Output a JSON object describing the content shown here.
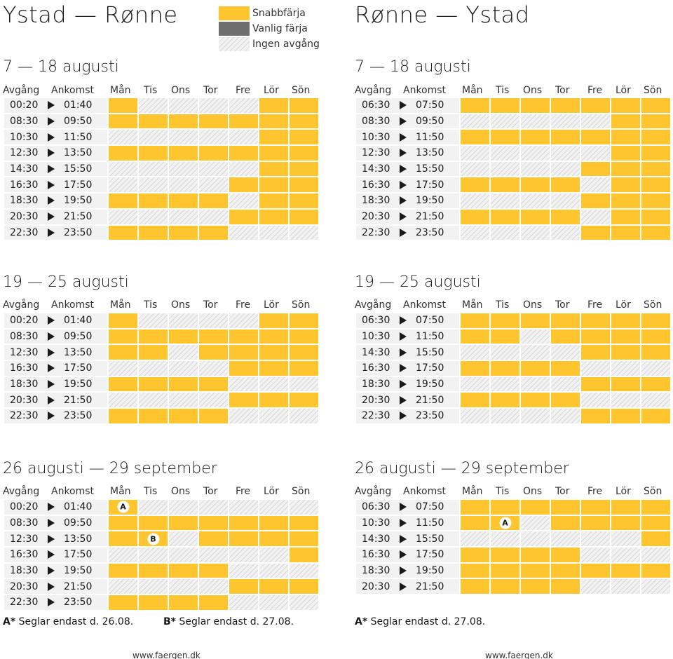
{
  "legend": {
    "fast_label": "Snabbfärja",
    "regular_label": "Vanlig färja",
    "none_label": "Ingen avgång",
    "colors": {
      "fast": "#ffc52e",
      "regular": "#6e6e6e",
      "none": "#f2f2f2"
    }
  },
  "columns": {
    "departure": "Avgång",
    "arrival": "Ankomst",
    "days": [
      "Mån",
      "Tis",
      "Ons",
      "Tor",
      "Fre",
      "Lör",
      "Sön"
    ]
  },
  "routes": [
    {
      "title": "Ystad — Rønne",
      "footer": "www.faergen.dk",
      "periods": [
        {
          "title": "7 — 18 augusti",
          "rows": [
            {
              "dep": "00:20",
              "arr": "01:40",
              "days": [
                "fast",
                "none",
                "none",
                "none",
                "none",
                "fast",
                "fast"
              ]
            },
            {
              "dep": "08:30",
              "arr": "09:50",
              "days": [
                "fast",
                "fast",
                "fast",
                "fast",
                "fast",
                "fast",
                "fast"
              ]
            },
            {
              "dep": "10:30",
              "arr": "11:50",
              "days": [
                "none",
                "none",
                "none",
                "none",
                "none",
                "fast",
                "fast"
              ]
            },
            {
              "dep": "12:30",
              "arr": "13:50",
              "days": [
                "fast",
                "fast",
                "fast",
                "fast",
                "fast",
                "fast",
                "fast"
              ]
            },
            {
              "dep": "14:30",
              "arr": "15:50",
              "days": [
                "none",
                "none",
                "none",
                "none",
                "none",
                "fast",
                "fast"
              ]
            },
            {
              "dep": "16:30",
              "arr": "17:50",
              "days": [
                "none",
                "none",
                "none",
                "none",
                "fast",
                "fast",
                "fast"
              ]
            },
            {
              "dep": "18:30",
              "arr": "19:50",
              "days": [
                "fast",
                "fast",
                "fast",
                "fast",
                "none",
                "fast",
                "fast"
              ]
            },
            {
              "dep": "20:30",
              "arr": "21:50",
              "days": [
                "none",
                "none",
                "none",
                "none",
                "fast",
                "fast",
                "fast"
              ]
            },
            {
              "dep": "22:30",
              "arr": "23:50",
              "days": [
                "fast",
                "fast",
                "fast",
                "fast",
                "none",
                "none",
                "none"
              ]
            }
          ]
        },
        {
          "title": "19 — 25 augusti",
          "rows": [
            {
              "dep": "00:20",
              "arr": "01:40",
              "days": [
                "fast",
                "none",
                "none",
                "none",
                "none",
                "fast",
                "fast"
              ]
            },
            {
              "dep": "08:30",
              "arr": "09:50",
              "days": [
                "fast",
                "fast",
                "fast",
                "fast",
                "fast",
                "fast",
                "fast"
              ]
            },
            {
              "dep": "12:30",
              "arr": "13:50",
              "days": [
                "fast",
                "fast",
                "none",
                "fast",
                "fast",
                "fast",
                "fast"
              ]
            },
            {
              "dep": "16:30",
              "arr": "17:50",
              "days": [
                "none",
                "none",
                "none",
                "none",
                "fast",
                "fast",
                "fast"
              ]
            },
            {
              "dep": "18:30",
              "arr": "19:50",
              "days": [
                "fast",
                "fast",
                "fast",
                "fast",
                "none",
                "none",
                "none"
              ]
            },
            {
              "dep": "20:30",
              "arr": "21:50",
              "days": [
                "none",
                "none",
                "none",
                "none",
                "fast",
                "fast",
                "fast"
              ]
            },
            {
              "dep": "22:30",
              "arr": "23:50",
              "days": [
                "fast",
                "fast",
                "fast",
                "fast",
                "none",
                "none",
                "none"
              ]
            }
          ]
        },
        {
          "title": "26 augusti — 29 september",
          "rows": [
            {
              "dep": "00:20",
              "arr": "01:40",
              "days": [
                "fast",
                "none",
                "none",
                "none",
                "none",
                "none",
                "none"
              ],
              "marker": {
                "day": 0,
                "text": "A"
              }
            },
            {
              "dep": "08:30",
              "arr": "09:50",
              "days": [
                "fast",
                "fast",
                "fast",
                "fast",
                "fast",
                "fast",
                "fast"
              ]
            },
            {
              "dep": "12:30",
              "arr": "13:50",
              "days": [
                "fast",
                "fast",
                "none",
                "fast",
                "fast",
                "fast",
                "fast"
              ],
              "marker": {
                "day": 1,
                "text": "B"
              }
            },
            {
              "dep": "16:30",
              "arr": "17:50",
              "days": [
                "none",
                "none",
                "none",
                "none",
                "none",
                "none",
                "fast"
              ]
            },
            {
              "dep": "18:30",
              "arr": "19:50",
              "days": [
                "fast",
                "fast",
                "fast",
                "fast",
                "none",
                "none",
                "none"
              ]
            },
            {
              "dep": "20:30",
              "arr": "21:50",
              "days": [
                "none",
                "none",
                "none",
                "none",
                "fast",
                "fast",
                "fast"
              ]
            },
            {
              "dep": "22:30",
              "arr": "23:50",
              "days": [
                "fast",
                "fast",
                "fast",
                "fast",
                "none",
                "none",
                "none"
              ]
            }
          ]
        }
      ],
      "footnotes": [
        {
          "key": "A*",
          "text": " Seglar endast d. 26.08."
        },
        {
          "key": "B*",
          "text": " Seglar endast d. 27.08."
        }
      ]
    },
    {
      "title": "Rønne — Ystad",
      "footer": "www.faergen.dk",
      "periods": [
        {
          "title": "7 — 18 augusti",
          "rows": [
            {
              "dep": "06:30",
              "arr": "07:50",
              "days": [
                "fast",
                "fast",
                "fast",
                "fast",
                "fast",
                "fast",
                "fast"
              ]
            },
            {
              "dep": "08:30",
              "arr": "09:50",
              "days": [
                "none",
                "none",
                "none",
                "none",
                "none",
                "fast",
                "fast"
              ]
            },
            {
              "dep": "10:30",
              "arr": "11:50",
              "days": [
                "fast",
                "fast",
                "fast",
                "fast",
                "fast",
                "fast",
                "fast"
              ]
            },
            {
              "dep": "12:30",
              "arr": "13:50",
              "days": [
                "none",
                "none",
                "none",
                "none",
                "none",
                "fast",
                "fast"
              ]
            },
            {
              "dep": "14:30",
              "arr": "15:50",
              "days": [
                "none",
                "none",
                "none",
                "none",
                "fast",
                "fast",
                "fast"
              ]
            },
            {
              "dep": "16:30",
              "arr": "17:50",
              "days": [
                "fast",
                "fast",
                "fast",
                "fast",
                "none",
                "fast",
                "fast"
              ]
            },
            {
              "dep": "18:30",
              "arr": "19:50",
              "days": [
                "none",
                "none",
                "none",
                "none",
                "fast",
                "fast",
                "fast"
              ]
            },
            {
              "dep": "20:30",
              "arr": "21:50",
              "days": [
                "fast",
                "fast",
                "fast",
                "fast",
                "none",
                "fast",
                "fast"
              ]
            },
            {
              "dep": "22:30",
              "arr": "23:50",
              "days": [
                "none",
                "none",
                "none",
                "none",
                "fast",
                "fast",
                "fast"
              ]
            }
          ]
        },
        {
          "title": "19 — 25 augusti",
          "rows": [
            {
              "dep": "06:30",
              "arr": "07:50",
              "days": [
                "fast",
                "fast",
                "fast",
                "fast",
                "fast",
                "fast",
                "fast"
              ]
            },
            {
              "dep": "10:30",
              "arr": "11:50",
              "days": [
                "fast",
                "fast",
                "none",
                "fast",
                "fast",
                "fast",
                "fast"
              ]
            },
            {
              "dep": "14:30",
              "arr": "15:50",
              "days": [
                "none",
                "none",
                "none",
                "none",
                "fast",
                "fast",
                "fast"
              ]
            },
            {
              "dep": "16:30",
              "arr": "17:50",
              "days": [
                "fast",
                "fast",
                "fast",
                "fast",
                "none",
                "none",
                "none"
              ]
            },
            {
              "dep": "18:30",
              "arr": "19:50",
              "days": [
                "none",
                "none",
                "none",
                "none",
                "fast",
                "fast",
                "fast"
              ]
            },
            {
              "dep": "20:30",
              "arr": "21:50",
              "days": [
                "fast",
                "fast",
                "fast",
                "fast",
                "none",
                "none",
                "none"
              ]
            },
            {
              "dep": "22:30",
              "arr": "23:50",
              "days": [
                "none",
                "none",
                "none",
                "none",
                "fast",
                "fast",
                "fast"
              ]
            }
          ]
        },
        {
          "title": "26 augusti — 29 september",
          "rows": [
            {
              "dep": "06:30",
              "arr": "07:50",
              "days": [
                "fast",
                "fast",
                "fast",
                "fast",
                "fast",
                "fast",
                "fast"
              ]
            },
            {
              "dep": "10:30",
              "arr": "11:50",
              "days": [
                "fast",
                "fast",
                "none",
                "fast",
                "fast",
                "fast",
                "fast"
              ],
              "marker": {
                "day": 1,
                "text": "A"
              }
            },
            {
              "dep": "14:30",
              "arr": "15:50",
              "days": [
                "none",
                "none",
                "none",
                "none",
                "none",
                "none",
                "fast"
              ]
            },
            {
              "dep": "16:30",
              "arr": "17:50",
              "days": [
                "fast",
                "fast",
                "fast",
                "fast",
                "none",
                "none",
                "none"
              ]
            },
            {
              "dep": "18:30",
              "arr": "19:50",
              "days": [
                "fast",
                "fast",
                "fast",
                "fast",
                "fast",
                "fast",
                "fast"
              ]
            },
            {
              "dep": "20:30",
              "arr": "21:50",
              "days": [
                "fast",
                "fast",
                "fast",
                "fast",
                "none",
                "none",
                "none"
              ]
            }
          ]
        }
      ],
      "footnotes": [
        {
          "key": "A*",
          "text": " Seglar endast d. 27.08."
        }
      ]
    }
  ]
}
